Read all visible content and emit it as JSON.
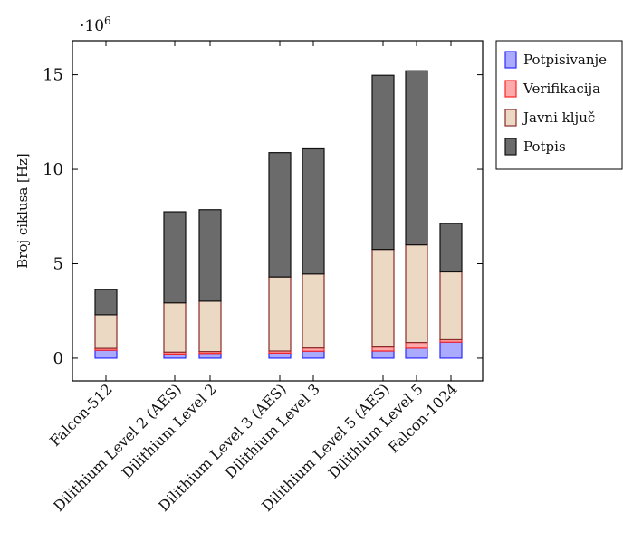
{
  "chart_data": {
    "type": "bar",
    "stacked": true,
    "categories": [
      "Falcon-512",
      "Dilithium Level 2 (AES)",
      "Dilithium Level 2",
      "Dilithium Level 3 (AES)",
      "Dilithium Level 3",
      "Dilithium Level 5 (AES)",
      "Dilithium Level 5",
      "Falcon-1024"
    ],
    "series": [
      {
        "name": "Potpisivanje",
        "color": "#aaaaff",
        "stroke": "#2b2bff",
        "values": [
          0.42,
          0.22,
          0.25,
          0.27,
          0.37,
          0.38,
          0.53,
          0.85
        ]
      },
      {
        "name": "Verifikacija",
        "color": "#ffaaaa",
        "stroke": "#ff2222",
        "values": [
          0.1,
          0.1,
          0.1,
          0.11,
          0.17,
          0.21,
          0.3,
          0.13
        ]
      },
      {
        "name": "Javni ključ",
        "color": "#ecd9c4",
        "stroke": "#8a2b2b",
        "values": [
          1.78,
          2.61,
          2.67,
          3.92,
          3.92,
          5.17,
          5.17,
          3.59
        ]
      },
      {
        "name": "Potpis",
        "color": "#6b6b6b",
        "stroke": "#111111",
        "values": [
          1.33,
          4.82,
          4.84,
          6.58,
          6.62,
          9.21,
          9.21,
          2.56
        ]
      }
    ],
    "ylabel": "Broj ciklusa [Hz]",
    "y_multiplier_label": "·10",
    "y_multiplier_exponent": "6",
    "ylim": [
      -1.2,
      16.8
    ],
    "yticks": [
      0,
      5,
      10,
      15
    ],
    "grid": false,
    "legend_position": "outside-right"
  }
}
